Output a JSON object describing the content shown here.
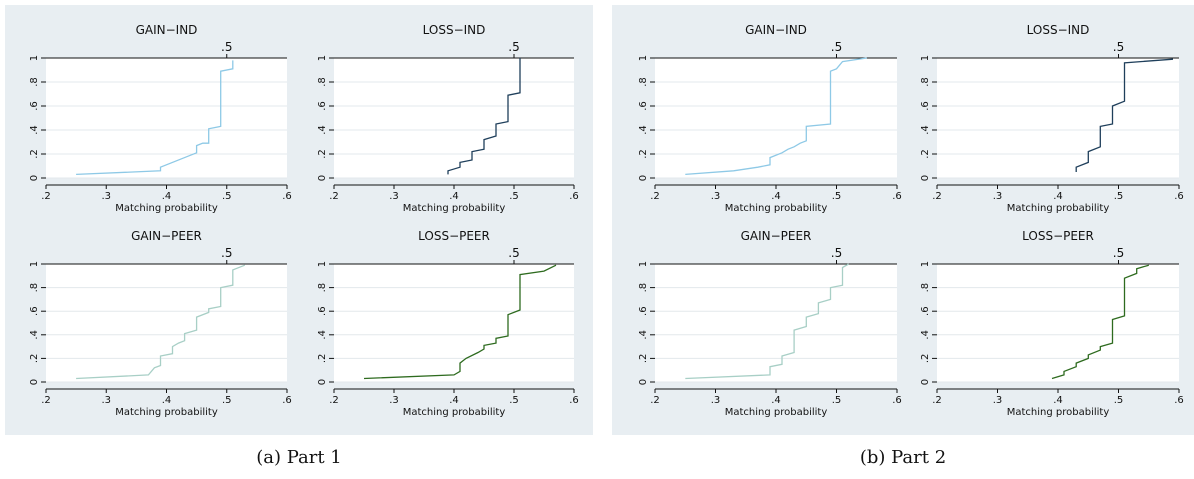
{
  "captions": [
    "(a) Part 1",
    "(b) Part 2"
  ],
  "colors": {
    "panel_background": "#e8eef2",
    "plot_background": "#ffffff",
    "gridline": "#e3e8ec"
  },
  "chart_data": [
    {
      "type": "line",
      "group": "(a) Part 1",
      "title": "GAIN−IND",
      "xlabel": "Matching probability",
      "ylabel": "",
      "xlim": [
        0.2,
        0.6
      ],
      "ylim": [
        0,
        1
      ],
      "grid": true,
      "top_marker": ".5",
      "color": "#8ec9e6",
      "x": [
        0.25,
        0.39,
        0.39,
        0.44,
        0.45,
        0.45,
        0.46,
        0.47,
        0.47,
        0.49,
        0.49,
        0.51,
        0.51
      ],
      "y": [
        0.03,
        0.06,
        0.09,
        0.19,
        0.21,
        0.27,
        0.29,
        0.29,
        0.41,
        0.43,
        0.89,
        0.91,
        0.98
      ]
    },
    {
      "type": "line",
      "group": "(a) Part 1",
      "title": "LOSS−IND",
      "xlabel": "Matching probability",
      "ylabel": "",
      "xlim": [
        0.2,
        0.6
      ],
      "ylim": [
        0,
        1
      ],
      "grid": true,
      "top_marker": ".5",
      "color": "#1f3f5b",
      "x": [
        0.39,
        0.39,
        0.41,
        0.41,
        0.43,
        0.43,
        0.45,
        0.45,
        0.47,
        0.47,
        0.49,
        0.49,
        0.51,
        0.51
      ],
      "y": [
        0.03,
        0.06,
        0.09,
        0.13,
        0.15,
        0.22,
        0.24,
        0.32,
        0.35,
        0.45,
        0.47,
        0.69,
        0.71,
        1.0
      ]
    },
    {
      "type": "line",
      "group": "(a) Part 1",
      "title": "GAIN−PEER",
      "xlabel": "Matching probability",
      "ylabel": "",
      "xlim": [
        0.2,
        0.6
      ],
      "ylim": [
        0,
        1
      ],
      "grid": true,
      "top_marker": ".5",
      "color": "#a8cfc6",
      "x": [
        0.25,
        0.37,
        0.38,
        0.39,
        0.39,
        0.41,
        0.41,
        0.42,
        0.43,
        0.43,
        0.45,
        0.45,
        0.47,
        0.47,
        0.49,
        0.49,
        0.51,
        0.51,
        0.53
      ],
      "y": [
        0.03,
        0.06,
        0.12,
        0.14,
        0.22,
        0.24,
        0.3,
        0.33,
        0.35,
        0.41,
        0.44,
        0.55,
        0.59,
        0.62,
        0.64,
        0.8,
        0.82,
        0.95,
        0.99
      ]
    },
    {
      "type": "line",
      "group": "(a) Part 1",
      "title": "LOSS−PEER",
      "xlabel": "Matching probability",
      "ylabel": "",
      "xlim": [
        0.2,
        0.6
      ],
      "ylim": [
        0,
        1
      ],
      "grid": true,
      "top_marker": ".5",
      "color": "#2e6b1f",
      "x": [
        0.25,
        0.4,
        0.41,
        0.41,
        0.42,
        0.44,
        0.45,
        0.45,
        0.47,
        0.47,
        0.49,
        0.49,
        0.51,
        0.51,
        0.55,
        0.57
      ],
      "y": [
        0.03,
        0.06,
        0.09,
        0.16,
        0.2,
        0.25,
        0.28,
        0.31,
        0.33,
        0.37,
        0.39,
        0.57,
        0.61,
        0.91,
        0.94,
        0.99
      ]
    },
    {
      "type": "line",
      "group": "(b) Part 2",
      "title": "GAIN−IND",
      "xlabel": "Matching probability",
      "ylabel": "",
      "xlim": [
        0.2,
        0.6
      ],
      "ylim": [
        0,
        1
      ],
      "grid": true,
      "top_marker": ".5",
      "color": "#8ec9e6",
      "x": [
        0.25,
        0.33,
        0.37,
        0.39,
        0.39,
        0.41,
        0.42,
        0.43,
        0.44,
        0.45,
        0.45,
        0.49,
        0.49,
        0.5,
        0.51,
        0.55
      ],
      "y": [
        0.03,
        0.06,
        0.09,
        0.11,
        0.17,
        0.21,
        0.24,
        0.26,
        0.29,
        0.31,
        0.43,
        0.45,
        0.89,
        0.91,
        0.97,
        1.0
      ]
    },
    {
      "type": "line",
      "group": "(b) Part 2",
      "title": "LOSS−IND",
      "xlabel": "Matching probability",
      "ylabel": "",
      "xlim": [
        0.2,
        0.6
      ],
      "ylim": [
        0,
        1
      ],
      "grid": true,
      "top_marker": ".5",
      "color": "#1f3f5b",
      "x": [
        0.43,
        0.43,
        0.45,
        0.45,
        0.47,
        0.47,
        0.49,
        0.49,
        0.51,
        0.51,
        0.59
      ],
      "y": [
        0.05,
        0.09,
        0.13,
        0.22,
        0.26,
        0.43,
        0.45,
        0.6,
        0.64,
        0.96,
        0.99
      ]
    },
    {
      "type": "line",
      "group": "(b) Part 2",
      "title": "GAIN−PEER",
      "xlabel": "Matching probability",
      "ylabel": "",
      "xlim": [
        0.2,
        0.6
      ],
      "ylim": [
        0,
        1
      ],
      "grid": true,
      "top_marker": ".5",
      "color": "#a8cfc6",
      "x": [
        0.25,
        0.39,
        0.39,
        0.41,
        0.41,
        0.43,
        0.43,
        0.45,
        0.45,
        0.47,
        0.47,
        0.49,
        0.49,
        0.51,
        0.51,
        0.52
      ],
      "y": [
        0.03,
        0.06,
        0.13,
        0.15,
        0.22,
        0.25,
        0.44,
        0.47,
        0.55,
        0.58,
        0.67,
        0.7,
        0.8,
        0.82,
        0.97,
        1.0
      ]
    },
    {
      "type": "line",
      "group": "(b) Part 2",
      "title": "LOSS−PEER",
      "xlabel": "Matching probability",
      "ylabel": "",
      "xlim": [
        0.2,
        0.6
      ],
      "ylim": [
        0,
        1
      ],
      "grid": true,
      "top_marker": ".5",
      "color": "#2e6b1f",
      "x": [
        0.39,
        0.41,
        0.41,
        0.43,
        0.43,
        0.45,
        0.45,
        0.47,
        0.47,
        0.49,
        0.49,
        0.51,
        0.51,
        0.53,
        0.53,
        0.55
      ],
      "y": [
        0.03,
        0.06,
        0.09,
        0.13,
        0.16,
        0.2,
        0.23,
        0.27,
        0.3,
        0.33,
        0.53,
        0.56,
        0.88,
        0.92,
        0.96,
        0.99
      ]
    }
  ],
  "axis": {
    "x_ticks": [
      ".2",
      ".3",
      ".4",
      ".5",
      ".6"
    ],
    "y_ticks": [
      "0",
      ".2",
      ".4",
      ".6",
      ".8",
      "1"
    ]
  }
}
